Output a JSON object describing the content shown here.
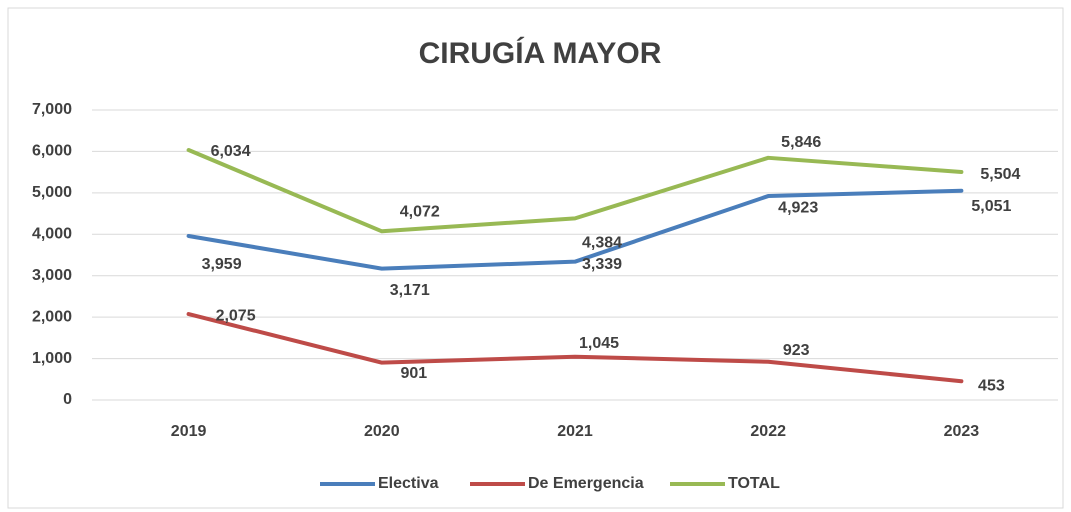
{
  "chart_data": {
    "type": "line",
    "title": "CIRUGÍA MAYOR",
    "categories": [
      "2019",
      "2020",
      "2021",
      "2022",
      "2023"
    ],
    "series": [
      {
        "name": "Electiva",
        "color": "#4a7ebb",
        "values": [
          3959,
          3171,
          3339,
          4923,
          5051
        ],
        "value_labels": [
          "3,959",
          "3,171",
          "3,339",
          "4,923",
          "5,051"
        ]
      },
      {
        "name": "De Emergencia",
        "color": "#be4b48",
        "values": [
          2075,
          901,
          1045,
          923,
          453
        ],
        "value_labels": [
          "2,075",
          "901",
          "1,045",
          "923",
          "453"
        ]
      },
      {
        "name": "TOTAL",
        "color": "#98b954",
        "values": [
          6034,
          4072,
          4384,
          5846,
          5504
        ],
        "value_labels": [
          "6,034",
          "4,072",
          "4,384",
          "5,846",
          "5,504"
        ]
      }
    ],
    "ylim": [
      0,
      7000
    ],
    "yticks": [
      0,
      {
        "value": 1000,
        "label": "1,000"
      },
      {
        "value": 2000,
        "label": "2,000"
      },
      {
        "value": 3000,
        "label": "3,000"
      },
      {
        "value": 4000,
        "label": "4,000"
      },
      {
        "value": 5000,
        "label": "5,000"
      },
      {
        "value": 6000,
        "label": "6,000"
      },
      {
        "value": 7000,
        "label": "7,000"
      }
    ],
    "grid": true,
    "legend": "bottom"
  }
}
